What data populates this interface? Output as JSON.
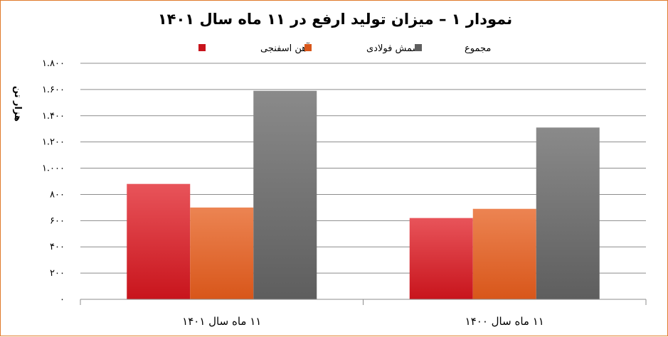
{
  "chart_data": {
    "type": "bar",
    "title": "نمودار ۱ – میزان تولید ارفع در ۱۱ ماه سال ۱۴۰۱",
    "ylabel": "هزار تن",
    "xlabel": "",
    "ylim": [
      0,
      1800
    ],
    "y_ticks": [
      0,
      200,
      400,
      600,
      800,
      1000,
      1200,
      1400,
      1600,
      1800
    ],
    "y_tick_labels": [
      "۰",
      "۲۰۰",
      "۴۰۰",
      "۶۰۰",
      "۸۰۰",
      "۱.۰۰۰",
      "۱.۲۰۰",
      "۱.۴۰۰",
      "۱.۶۰۰",
      "۱.۸۰۰"
    ],
    "grid": true,
    "legend_position": "top",
    "categories": [
      "۱۱ ماه سال ۱۴۰۱",
      "۱۱ ماه سال ۱۴۰۰"
    ],
    "series": [
      {
        "name": "آهن اسفنجی",
        "values": [
          880,
          620
        ],
        "color_light": "#e8545a",
        "color_dark": "#c8141c"
      },
      {
        "name": "شمش فولادی",
        "values": [
          700,
          690
        ],
        "color_light": "#ec8452",
        "color_dark": "#d8561a"
      },
      {
        "name": "مجموع",
        "values": [
          1590,
          1310
        ],
        "color_light": "#8a8a8a",
        "color_dark": "#5e5e5e"
      }
    ]
  }
}
